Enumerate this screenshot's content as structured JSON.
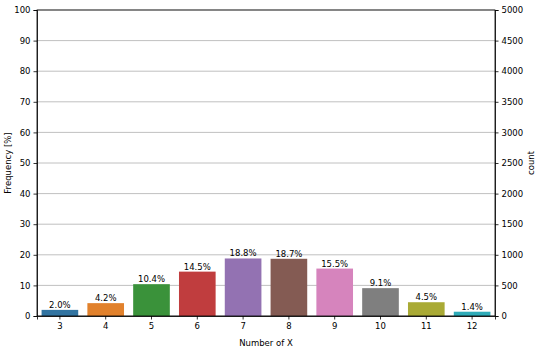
{
  "chart_data": {
    "type": "bar",
    "x_label": "Number of X",
    "y_label": "Frequency [%]",
    "y2_label": "count",
    "categories": [
      "3",
      "4",
      "5",
      "6",
      "7",
      "8",
      "9",
      "10",
      "11",
      "12"
    ],
    "values": [
      2.0,
      4.2,
      10.4,
      14.5,
      18.8,
      18.7,
      15.5,
      9.1,
      4.5,
      1.4
    ],
    "value_labels": [
      "2.0%",
      "4.2%",
      "10.4%",
      "14.5%",
      "18.8%",
      "18.7%",
      "15.5%",
      "9.1%",
      "4.5%",
      "1.4%"
    ],
    "colors": [
      "#3274a1",
      "#e1812c",
      "#3a923a",
      "#c03d3e",
      "#9372b2",
      "#845b53",
      "#d684bd",
      "#7f7f7f",
      "#a9aa35",
      "#2eabb8"
    ],
    "ylim": [
      0,
      100
    ],
    "yticks": [
      0,
      10,
      20,
      30,
      40,
      50,
      60,
      70,
      80,
      90,
      100
    ],
    "y2lim": [
      0,
      5000
    ],
    "y2ticks": [
      0,
      500,
      1000,
      1500,
      2000,
      2500,
      3000,
      3500,
      4000,
      4500,
      5000
    ],
    "grid": true,
    "data_labels": true
  }
}
